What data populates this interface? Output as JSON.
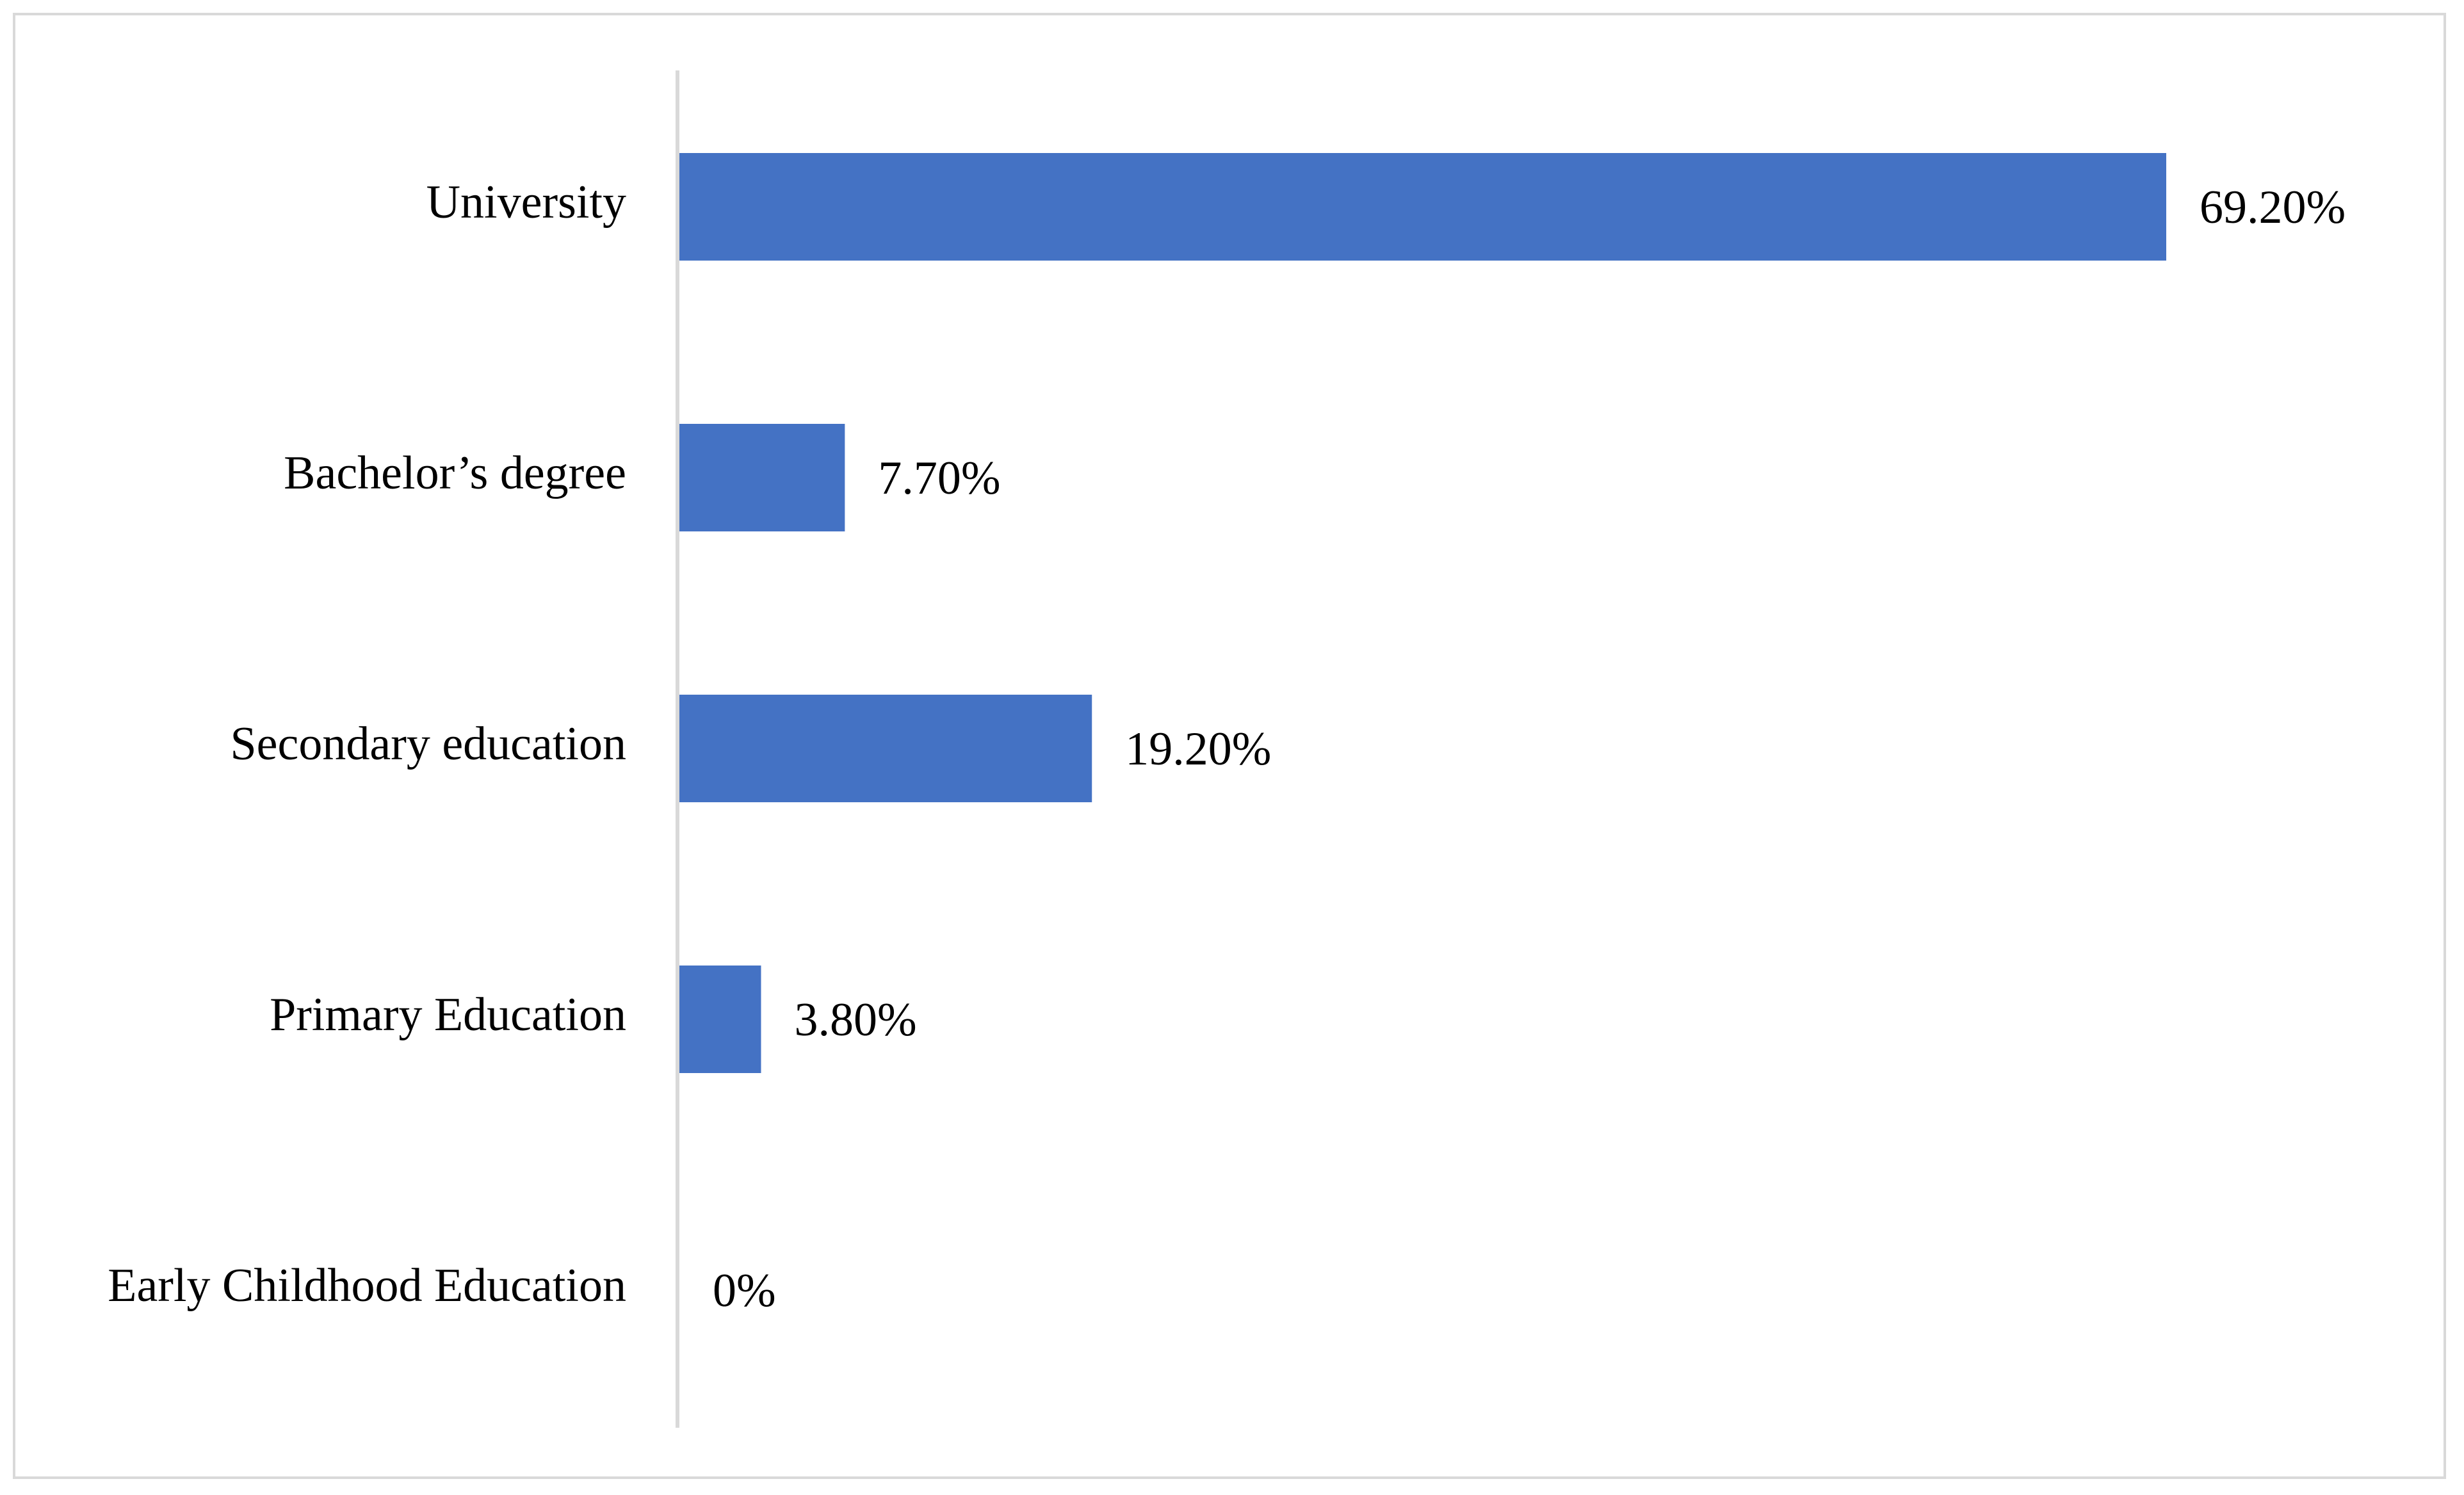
{
  "chart_data": {
    "type": "bar",
    "orientation": "horizontal",
    "categories": [
      "University",
      "Bachelor’s degree",
      "Secondary education",
      "Primary Education",
      "Early Childhood Education"
    ],
    "values": [
      69.2,
      7.7,
      19.2,
      3.8,
      0
    ],
    "data_labels": [
      "69.20%",
      "7.70%",
      "19.20%",
      "3.80%",
      "0%"
    ],
    "unit": "%",
    "title": "",
    "xlabel": "",
    "ylabel": "",
    "xlim": [
      0,
      80
    ],
    "grid": false,
    "legend": "none",
    "colors": {
      "bar": "#4472c4",
      "axis": "#d9d9d9",
      "border": "#d9d9d9",
      "text": "#000000"
    }
  }
}
